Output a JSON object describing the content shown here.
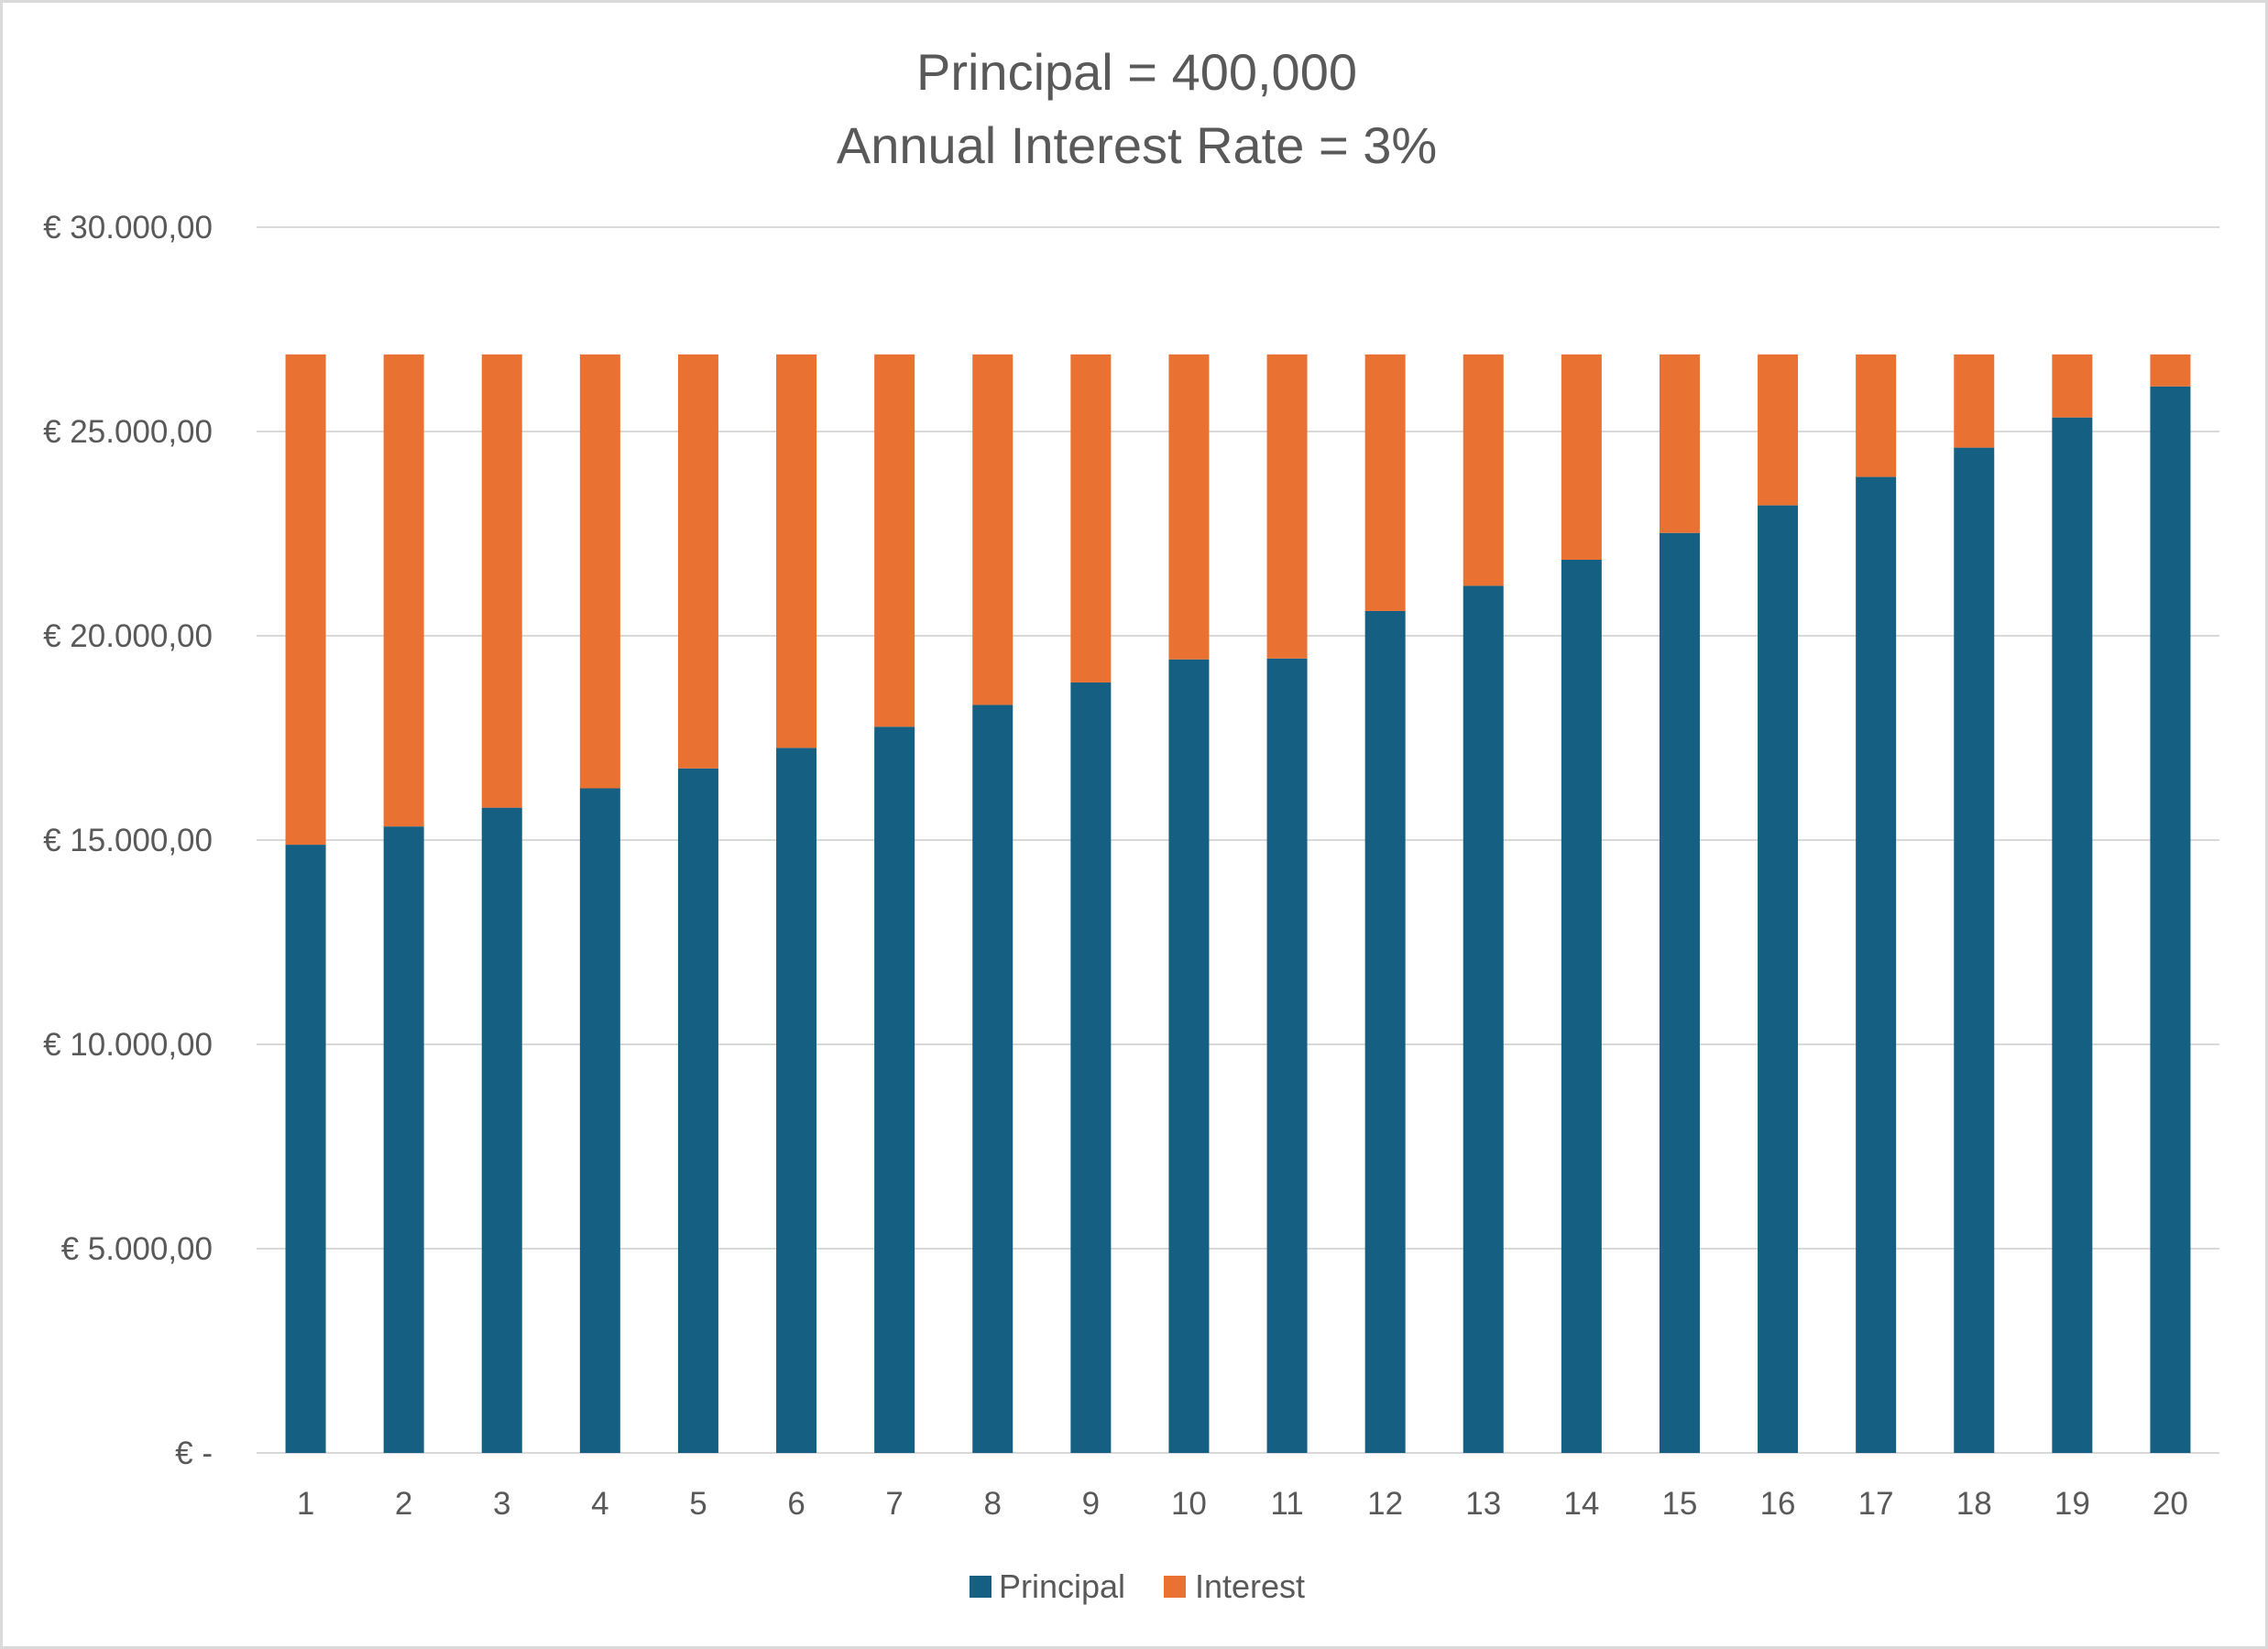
{
  "chart_data": {
    "type": "bar",
    "stacked": true,
    "title": [
      "Principal = 400,000",
      "Annual Interest Rate = 3%"
    ],
    "categories": [
      "1",
      "2",
      "3",
      "4",
      "5",
      "6",
      "7",
      "8",
      "9",
      "10",
      "11",
      "12",
      "13",
      "14",
      "15",
      "16",
      "17",
      "18",
      "19",
      "20"
    ],
    "series": [
      {
        "name": "Principal",
        "color": "#156082",
        "values": [
          14886.28,
          15332.87,
          15792.85,
          16266.64,
          16754.64,
          17257.28,
          17775.0,
          18308.25,
          18857.5,
          19423.22,
          19445.0,
          20606.3,
          21224.49,
          21861.22,
          22517.06,
          23192.57,
          23888.35,
          24605.0,
          25343.15,
          26103.45
        ]
      },
      {
        "name": "Interest",
        "color": "#E97132",
        "values": [
          12000.0,
          11553.41,
          11093.43,
          10619.64,
          10131.64,
          9629.0,
          9111.28,
          8578.03,
          8028.78,
          7463.06,
          7441.28,
          6279.98,
          5661.79,
          5025.06,
          4369.22,
          3693.71,
          2997.93,
          2281.28,
          1543.13,
          782.83
        ]
      }
    ],
    "y_ticks": [
      {
        "value": 0,
        "label": "€ -"
      },
      {
        "value": 5000,
        "label": "€ 5.000,00"
      },
      {
        "value": 10000,
        "label": "€ 10.000,00"
      },
      {
        "value": 15000,
        "label": "€ 15.000,00"
      },
      {
        "value": 20000,
        "label": "€ 20.000,00"
      },
      {
        "value": 25000,
        "label": "€ 25.000,00"
      },
      {
        "value": 30000,
        "label": "€ 30.000,00"
      }
    ],
    "ylim": [
      0,
      30000
    ],
    "grid": true,
    "legend_position": "bottom",
    "gridline_color": "#d9d9d9"
  }
}
